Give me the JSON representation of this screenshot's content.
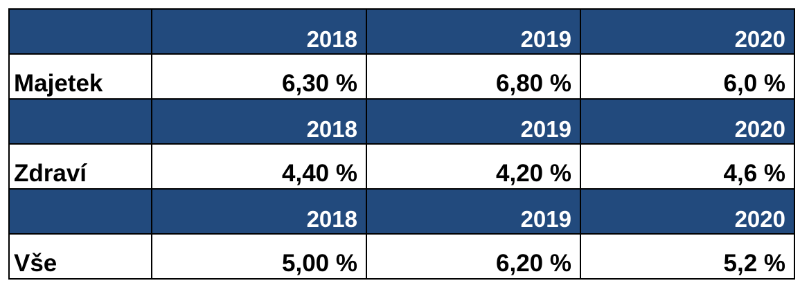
{
  "colors": {
    "header_bg": "#224a7d",
    "header_text": "#ffffff",
    "body_text": "#000000",
    "border": "#000000"
  },
  "sections": [
    {
      "years": [
        "2018",
        "2019",
        "2020"
      ],
      "label": "Majetek",
      "values": [
        "6,30 %",
        "6,80 %",
        "6,0 %"
      ]
    },
    {
      "years": [
        "2018",
        "2019",
        "2020"
      ],
      "label": "Zdraví",
      "values": [
        "4,40 %",
        "4,20 %",
        "4,6 %"
      ]
    },
    {
      "years": [
        "2018",
        "2019",
        "2020"
      ],
      "label": "Vše",
      "values": [
        "5,00 %",
        "6,20 %",
        "5,2 %"
      ]
    }
  ]
}
